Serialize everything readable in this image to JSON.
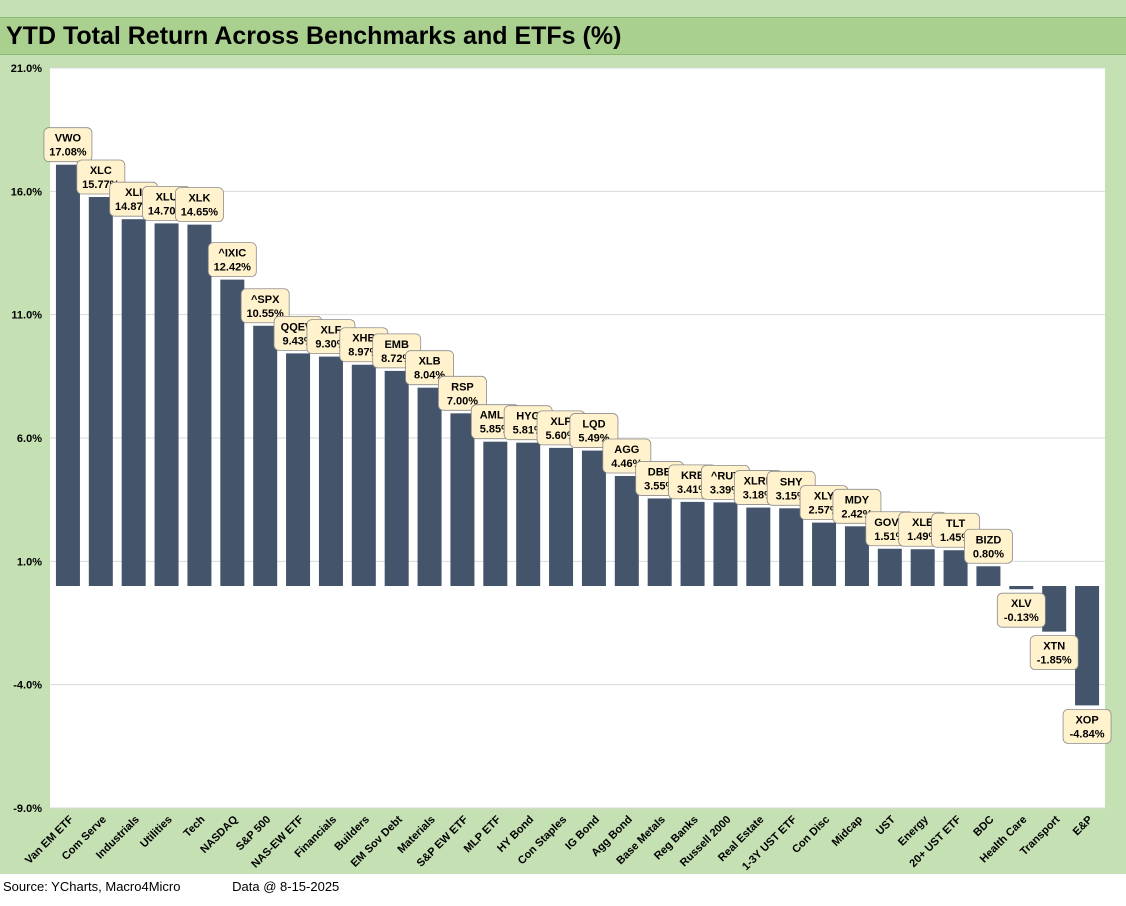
{
  "chart_data": {
    "type": "bar",
    "title": "YTD Total Return Across Benchmarks and ETFs (%)",
    "xlabel": "",
    "ylabel": "",
    "ylim": [
      -9.0,
      21.0
    ],
    "yticks": [
      21.0,
      16.0,
      11.0,
      6.0,
      1.0,
      -4.0,
      -9.0
    ],
    "ytick_labels": [
      "21.0%",
      "16.0%",
      "11.0%",
      "6.0%",
      "1.0%",
      "-4.0%",
      "-9.0%"
    ],
    "grid": true,
    "bar_color": "#44546a",
    "label_bg": "#fff2cc",
    "categories": [
      "Van EM ETF",
      "Com Serve",
      "Industrials",
      "Utilities",
      "Tech",
      "NASDAQ",
      "S&P 500",
      "NAS-EW ETF",
      "Financials",
      "Builders",
      "EM Sov Debt",
      "Materials",
      "S&P EW ETF",
      "MLP ETF",
      "HY Bond",
      "Con Staples",
      "IG Bond",
      "Agg Bond",
      "Base Metals",
      "Reg Banks",
      "Russell 2000",
      "Real Estate",
      "1-3Y UST ETF",
      "Con Disc",
      "Midcap",
      "UST",
      "Energy",
      "20+ UST ETF",
      "BDC",
      "Health Care",
      "Transport",
      "E&P"
    ],
    "tickers": [
      "VWO",
      "XLC",
      "XLI",
      "XLU",
      "XLK",
      "^IXIC",
      "^SPX",
      "QQEW",
      "XLF",
      "XHB",
      "EMB",
      "XLB",
      "RSP",
      "AMLP",
      "HYG",
      "XLP",
      "LQD",
      "AGG",
      "DBB",
      "KRE",
      "^RUT",
      "XLRE",
      "SHY",
      "XLY",
      "MDY",
      "GOVT",
      "XLE",
      "TLT",
      "BIZD",
      "XLV",
      "XTN",
      "XOP"
    ],
    "values": [
      17.08,
      15.77,
      14.87,
      14.7,
      14.65,
      12.42,
      10.55,
      9.43,
      9.3,
      8.97,
      8.72,
      8.04,
      7.0,
      5.85,
      5.81,
      5.6,
      5.49,
      4.46,
      3.55,
      3.41,
      3.39,
      3.18,
      3.15,
      2.57,
      2.42,
      1.51,
      1.49,
      1.45,
      0.8,
      -0.13,
      -1.85,
      -4.84
    ],
    "value_labels": [
      "17.08%",
      "15.77%",
      "14.87%",
      "14.70%",
      "14.65%",
      "12.42%",
      "10.55%",
      "9.43%",
      "9.30%",
      "8.97%",
      "8.72%",
      "8.04%",
      "7.00%",
      "5.85%",
      "5.81%",
      "5.60%",
      "5.49%",
      "4.46%",
      "3.55%",
      "3.41%",
      "3.39%",
      "3.18%",
      "3.15%",
      "2.57%",
      "2.42%",
      "1.51%",
      "1.49%",
      "1.45%",
      "0.80%",
      "-0.13%",
      "-1.85%",
      "-4.84%"
    ]
  },
  "footer": {
    "source": "Source: YCharts, Macro4Micro",
    "date": "Data @ 8-15-2025"
  }
}
